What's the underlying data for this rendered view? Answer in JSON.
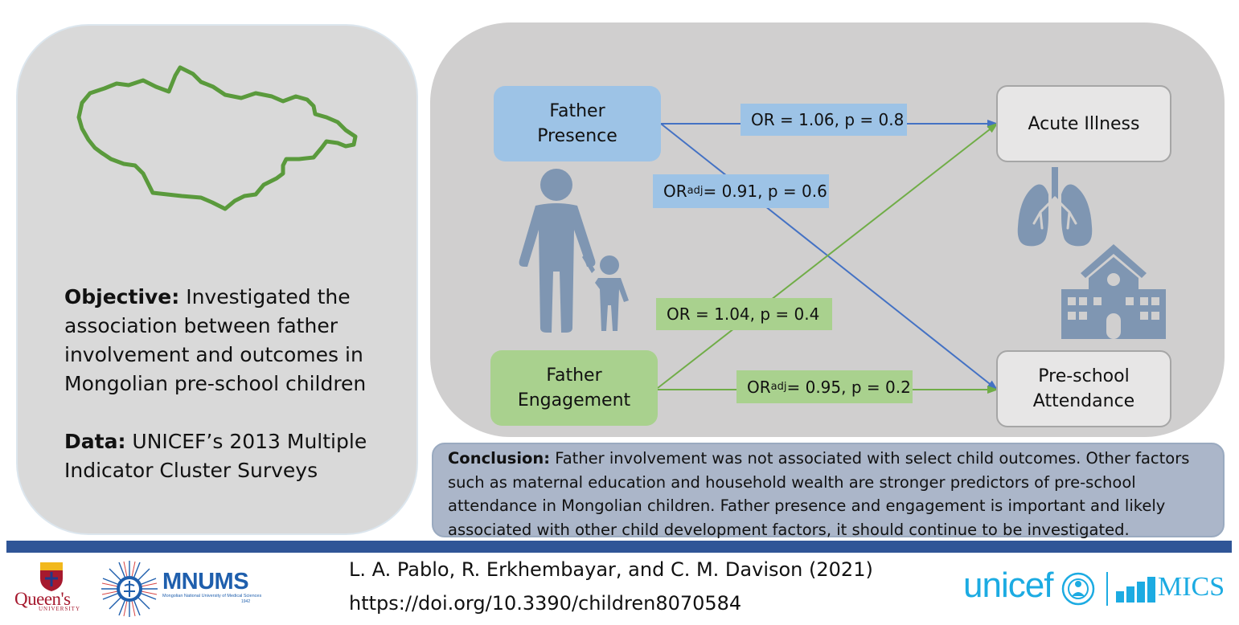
{
  "left_panel": {
    "objective_label": "Objective:",
    "objective_text": " Investigated the association between father involvement and outcomes in Mongolian pre-school children",
    "data_label": "Data:",
    "data_text": " UNICEF’s 2013 Multiple Indicator Cluster Surveys"
  },
  "diagram": {
    "nodes": {
      "father_presence": [
        "Father",
        "Presence"
      ],
      "father_engagement": [
        "Father",
        "Engagement"
      ],
      "acute_illness": "Acute Illness",
      "preschool_attendance": [
        "Pre-school",
        "Attendance"
      ]
    },
    "edges": [
      {
        "from": "Father Presence",
        "to": "Acute Illness",
        "label": "OR = 1.06, p = 0.8"
      },
      {
        "from": "Father Presence",
        "to": "Pre-school Attendance",
        "label_prefix": "OR",
        "label_sub": "adj",
        "label_rest": " = 0.91, p = 0.6"
      },
      {
        "from": "Father Engagement",
        "to": "Acute Illness",
        "label": "OR = 1.04, p = 0.4"
      },
      {
        "from": "Father Engagement",
        "to": "Pre-school Attendance",
        "label_prefix": "OR",
        "label_sub": "adj",
        "label_rest": " = 0.95, p = 0.2"
      }
    ],
    "icons": [
      "father-child-icon",
      "lungs-icon",
      "school-icon",
      "mongolia-map-icon"
    ],
    "colors": {
      "presence": "#4472c4",
      "engagement": "#70ad47",
      "icon": "#7f96b2"
    }
  },
  "conclusion": {
    "label": "Conclusion:",
    "text": " Father involvement was not associated with select child outcomes. Other factors such as maternal education and household wealth are stronger predictors of pre-school attendance in Mongolian children. Father presence and engagement is important and likely associated with other child development factors, it should continue to be investigated."
  },
  "footer": {
    "authors": "L. A. Pablo, R. Erkhembayar, and C. M. Davison (2021)",
    "doi": "https://doi.org/10.3390/children8070584",
    "logos": {
      "queens": "Queen's",
      "queens_sub": "UNIVERSITY",
      "mnums": "MNUMS",
      "mnums_sub": "Mongolian National University of Medical Sciences",
      "mnums_year": "1942",
      "unicef": "unicef",
      "mics": "MICS"
    }
  }
}
